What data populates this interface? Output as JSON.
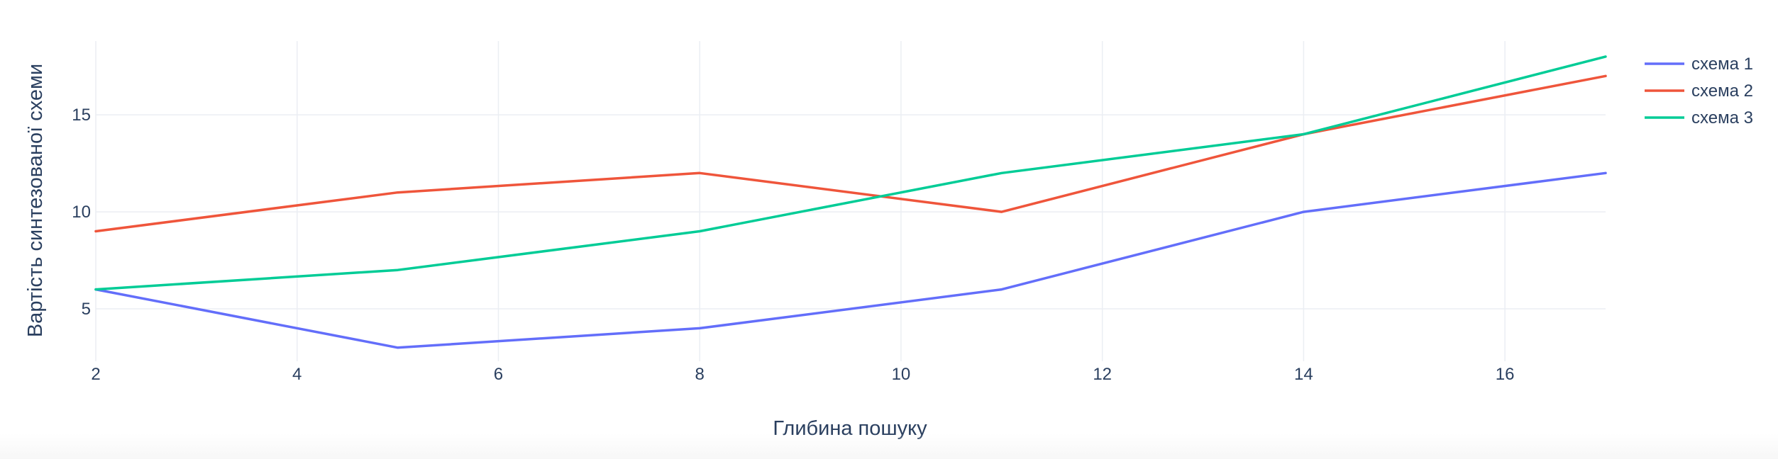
{
  "chart_data": {
    "type": "line",
    "xlabel": "Глибина пошуку",
    "ylabel": "Вартість синтезованої схеми",
    "xlim": [
      2,
      17
    ],
    "ylim": [
      2.3,
      18.8
    ],
    "xticks": [
      2,
      4,
      6,
      8,
      10,
      12,
      14,
      16
    ],
    "yticks": [
      5,
      10,
      15
    ],
    "grid": true,
    "legend_position": "top-right",
    "series": [
      {
        "name": "схема 1",
        "color": "#636efa",
        "x": [
          2,
          5,
          8,
          11,
          14,
          17
        ],
        "y": [
          6,
          3,
          4,
          6,
          10,
          12
        ]
      },
      {
        "name": "схема 2",
        "color": "#EF553B",
        "x": [
          2,
          5,
          8,
          11,
          14,
          17
        ],
        "y": [
          9,
          11,
          12,
          10,
          14,
          17
        ]
      },
      {
        "name": "схема 3",
        "color": "#00cc96",
        "x": [
          2,
          5,
          8,
          11,
          14,
          17
        ],
        "y": [
          6,
          7,
          9,
          12,
          14,
          18
        ]
      }
    ]
  }
}
